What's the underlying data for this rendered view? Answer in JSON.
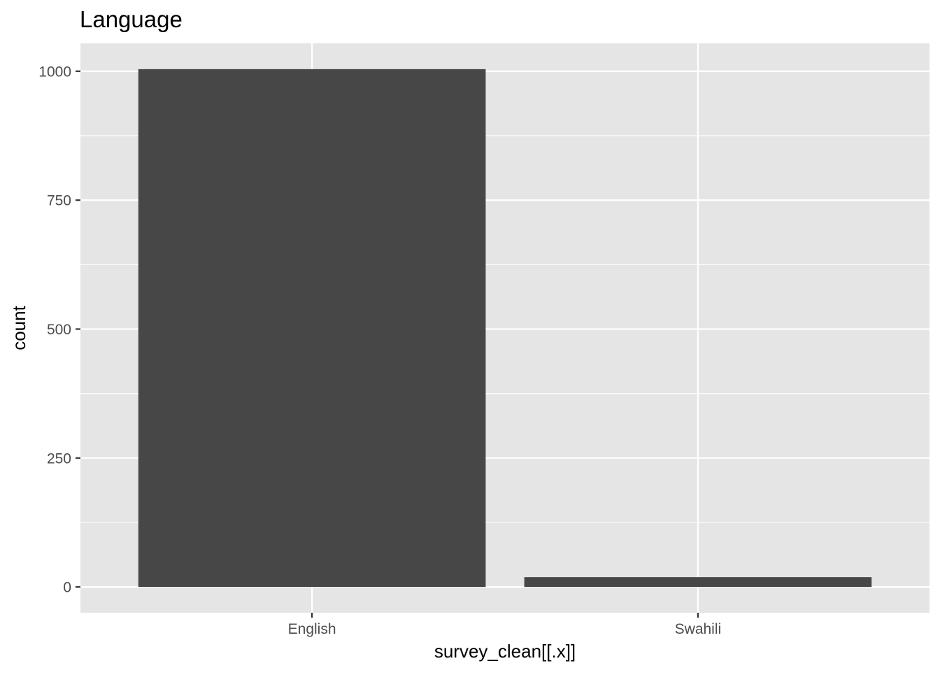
{
  "chart_data": {
    "type": "bar",
    "title": "Language",
    "xlabel": "survey_clean[[.x]]",
    "ylabel": "count",
    "categories": [
      "English",
      "Swahili"
    ],
    "values": [
      1004,
      19
    ],
    "ylim": [
      -50,
      1054
    ],
    "yticks": [
      0,
      250,
      500,
      750,
      1000
    ],
    "ytick_labels": [
      "0",
      "250",
      "500",
      "750",
      "1000"
    ],
    "grid": true,
    "panel_color": "#e5e5e5",
    "grid_color": "#ffffff",
    "bar_color": "#474747"
  }
}
